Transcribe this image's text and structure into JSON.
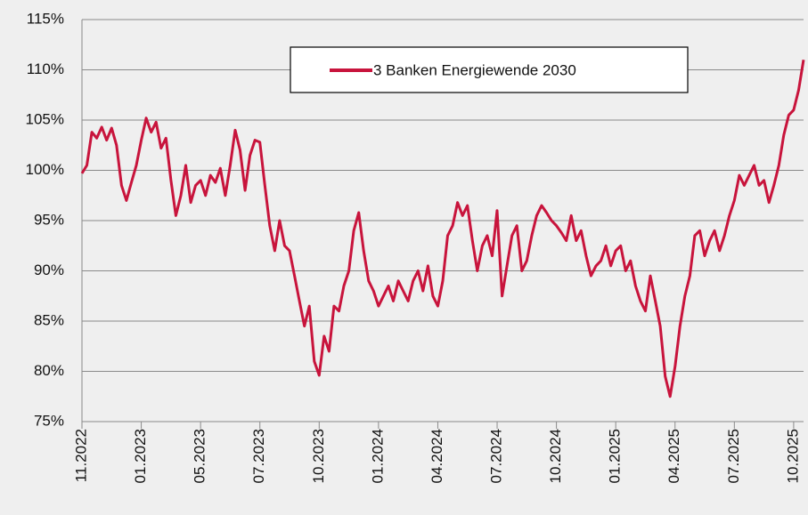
{
  "chart_data": {
    "type": "line",
    "categories": [
      "11.2022",
      null,
      null,
      null,
      null,
      null,
      null,
      null,
      null,
      null,
      null,
      null,
      "01.2023",
      null,
      null,
      null,
      null,
      null,
      null,
      null,
      null,
      null,
      null,
      null,
      "05.2023",
      null,
      null,
      null,
      null,
      null,
      null,
      null,
      null,
      null,
      null,
      null,
      "07.2023",
      null,
      null,
      null,
      null,
      null,
      null,
      null,
      null,
      null,
      null,
      null,
      "10.2023",
      null,
      null,
      null,
      null,
      null,
      null,
      null,
      null,
      null,
      null,
      null,
      "01.2024",
      null,
      null,
      null,
      null,
      null,
      null,
      null,
      null,
      null,
      null,
      null,
      "04.2024",
      null,
      null,
      null,
      null,
      null,
      null,
      null,
      null,
      null,
      null,
      null,
      "07.2024",
      null,
      null,
      null,
      null,
      null,
      null,
      null,
      null,
      null,
      null,
      null,
      "10.2024",
      null,
      null,
      null,
      null,
      null,
      null,
      null,
      null,
      null,
      null,
      null,
      "01.2025",
      null,
      null,
      null,
      null,
      null,
      null,
      null,
      null,
      null,
      null,
      null,
      "04.2025",
      null,
      null,
      null,
      null,
      null,
      null,
      null,
      null,
      null,
      null,
      null,
      "07.2025",
      null,
      null,
      null,
      null,
      null,
      null,
      null,
      null,
      null,
      null,
      null,
      "10.2025",
      null,
      null
    ],
    "series": [
      {
        "name": "3 Banken Energiewende 2030",
        "color": "#c8143c",
        "values": [
          99.7,
          100.5,
          103.8,
          103.2,
          104.3,
          103.0,
          104.2,
          102.5,
          98.5,
          97.0,
          98.8,
          100.5,
          103.0,
          105.2,
          103.8,
          104.8,
          102.2,
          103.2,
          99.0,
          95.5,
          97.5,
          100.5,
          96.8,
          98.5,
          99.0,
          97.5,
          99.5,
          98.8,
          100.2,
          97.5,
          100.5,
          104.0,
          102.0,
          98.0,
          101.5,
          103.0,
          102.8,
          98.5,
          94.5,
          92.0,
          95.0,
          92.5,
          92.0,
          89.5,
          87.0,
          84.5,
          86.5,
          81.0,
          79.6,
          83.5,
          82.0,
          86.5,
          86.0,
          88.5,
          90.0,
          94.0,
          95.8,
          92.0,
          89.0,
          88.0,
          86.5,
          87.5,
          88.5,
          87.0,
          89.0,
          88.0,
          87.0,
          89.0,
          90.0,
          88.0,
          90.5,
          87.5,
          86.5,
          89.0,
          93.5,
          94.5,
          96.8,
          95.5,
          96.5,
          93.0,
          90.0,
          92.5,
          93.5,
          91.5,
          96.0,
          87.5,
          90.5,
          93.5,
          94.5,
          90.0,
          91.0,
          93.5,
          95.5,
          96.5,
          95.8,
          95.0,
          94.5,
          93.8,
          93.0,
          95.5,
          93.0,
          94.0,
          91.5,
          89.5,
          90.5,
          91.0,
          92.5,
          90.5,
          92.0,
          92.5,
          90.0,
          91.0,
          88.5,
          87.0,
          86.0,
          89.5,
          87.0,
          84.5,
          79.5,
          77.5,
          80.5,
          84.5,
          87.5,
          89.5,
          93.5,
          94.0,
          91.5,
          93.0,
          94.0,
          92.0,
          93.5,
          95.5,
          97.0,
          99.5,
          98.5,
          99.5,
          100.5,
          98.5,
          99.0,
          96.8,
          98.5,
          100.5,
          103.5,
          105.5,
          106.0,
          108.0,
          111.0
        ]
      }
    ],
    "ylim": [
      75,
      115
    ],
    "yticks": [
      {
        "value": 75,
        "label": "75%"
      },
      {
        "value": 80,
        "label": "80%"
      },
      {
        "value": 85,
        "label": "85%"
      },
      {
        "value": 90,
        "label": "90%"
      },
      {
        "value": 95,
        "label": "95%"
      },
      {
        "value": 100,
        "label": "100%"
      },
      {
        "value": 105,
        "label": "105%"
      },
      {
        "value": 110,
        "label": "110%"
      },
      {
        "value": 115,
        "label": "115%"
      }
    ],
    "grid": true,
    "legend": "top"
  }
}
